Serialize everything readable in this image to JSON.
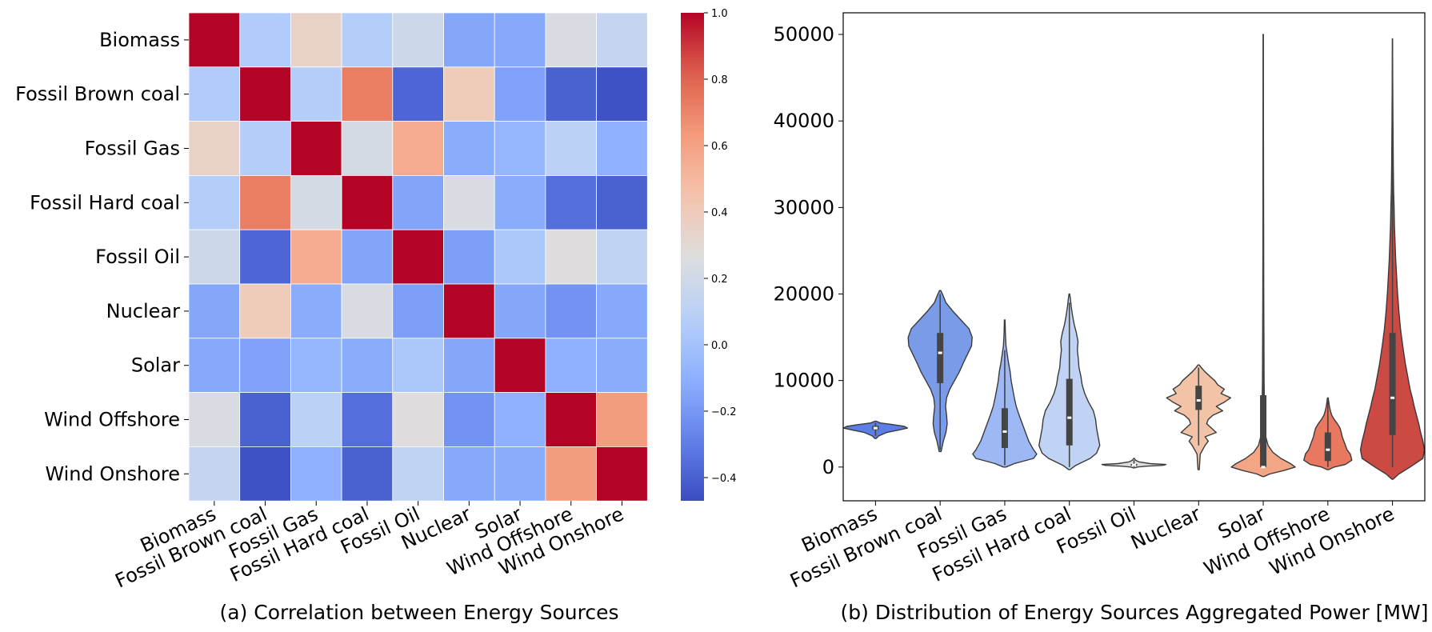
{
  "chart_data": [
    {
      "type": "heatmap",
      "caption": "(a) Correlation between Energy Sources",
      "row_labels": [
        "Biomass",
        "Fossil Brown coal",
        "Fossil Gas",
        "Fossil Hard coal",
        "Fossil Oil",
        "Nuclear",
        "Solar",
        "Wind Offshore",
        "Wind Onshore"
      ],
      "col_labels": [
        "Biomass",
        "Fossil Brown coal",
        "Fossil Gas",
        "Fossil Hard coal",
        "Fossil Oil",
        "Nuclear",
        "Solar",
        "Wind Offshore",
        "Wind Onshore"
      ],
      "colormap": "coolwarm",
      "vmin": -0.47,
      "vmax": 1.0,
      "colorbar_ticks": [
        "1.0",
        "0.8",
        "0.6",
        "0.4",
        "0.2",
        "0.0",
        "−0.2",
        "−0.4"
      ],
      "colorbar_tick_values": [
        1.0,
        0.8,
        0.6,
        0.4,
        0.2,
        0.0,
        -0.2,
        -0.4
      ],
      "values": [
        [
          1.0,
          0.05,
          0.35,
          0.07,
          0.18,
          -0.14,
          -0.13,
          0.24,
          0.15
        ],
        [
          0.05,
          1.0,
          0.07,
          0.72,
          -0.38,
          0.4,
          -0.16,
          -0.4,
          -0.45
        ],
        [
          0.35,
          0.07,
          1.0,
          0.22,
          0.56,
          -0.12,
          -0.07,
          0.1,
          -0.1
        ],
        [
          0.07,
          0.72,
          0.22,
          1.0,
          -0.15,
          0.24,
          -0.12,
          -0.35,
          -0.4
        ],
        [
          0.18,
          -0.38,
          0.56,
          -0.15,
          1.0,
          -0.17,
          0.03,
          0.27,
          0.12
        ],
        [
          -0.14,
          0.4,
          -0.12,
          0.24,
          -0.17,
          1.0,
          -0.14,
          -0.22,
          -0.13
        ],
        [
          -0.13,
          -0.16,
          -0.07,
          -0.12,
          0.03,
          -0.14,
          1.0,
          -0.1,
          -0.12
        ],
        [
          0.24,
          -0.4,
          0.1,
          -0.35,
          0.27,
          -0.22,
          -0.1,
          1.0,
          0.62
        ],
        [
          0.15,
          -0.45,
          -0.1,
          -0.4,
          0.12,
          -0.13,
          -0.12,
          0.62,
          1.0
        ]
      ]
    },
    {
      "type": "violin",
      "caption": "(b) Distribution of Energy Sources Aggregated Power [MW]",
      "categories": [
        "Biomass",
        "Fossil Brown coal",
        "Fossil Gas",
        "Fossil Hard coal",
        "Fossil Oil",
        "Nuclear",
        "Solar",
        "Wind Offshore",
        "Wind Onshore"
      ],
      "colors": [
        "#5b7fe6",
        "#7a9ce8",
        "#9db8f5",
        "#c0d3f4",
        "#dcdcdc",
        "#f3c3a8",
        "#f2a686",
        "#e8785f",
        "#cb4a44"
      ],
      "ylim": [
        -3900,
        52500
      ],
      "yticks": [
        0,
        10000,
        20000,
        30000,
        40000,
        50000
      ],
      "ytick_labels": [
        "0",
        "10000",
        "20000",
        "30000",
        "40000",
        "50000"
      ],
      "series": [
        {
          "name": "Biomass",
          "median": 4500,
          "q1": 4300,
          "q3": 4750,
          "whisker_low": 3600,
          "whisker_high": 5100,
          "profile": [
            [
              3300,
              0.02
            ],
            [
              3600,
              0.1
            ],
            [
              4000,
              0.35
            ],
            [
              4300,
              0.75
            ],
            [
              4500,
              1.0
            ],
            [
              4700,
              0.9
            ],
            [
              4900,
              0.55
            ],
            [
              5100,
              0.15
            ],
            [
              5300,
              0.02
            ]
          ]
        },
        {
          "name": "Fossil Brown coal",
          "median": 13200,
          "q1": 9700,
          "q3": 15500,
          "whisker_low": 2000,
          "whisker_high": 20000,
          "profile": [
            [
              1800,
              0.03
            ],
            [
              3000,
              0.1
            ],
            [
              4000,
              0.18
            ],
            [
              5000,
              0.22
            ],
            [
              6000,
              0.2
            ],
            [
              7000,
              0.17
            ],
            [
              8000,
              0.2
            ],
            [
              9000,
              0.3
            ],
            [
              10000,
              0.45
            ],
            [
              11000,
              0.6
            ],
            [
              12000,
              0.72
            ],
            [
              13000,
              0.85
            ],
            [
              14000,
              0.98
            ],
            [
              15000,
              1.0
            ],
            [
              16000,
              0.9
            ],
            [
              17000,
              0.65
            ],
            [
              18000,
              0.4
            ],
            [
              19000,
              0.18
            ],
            [
              20000,
              0.07
            ],
            [
              20400,
              0.02
            ]
          ]
        },
        {
          "name": "Fossil Gas",
          "median": 4100,
          "q1": 2200,
          "q3": 6800,
          "whisker_low": 200,
          "whisker_high": 13500,
          "profile": [
            [
              0,
              0.04
            ],
            [
              400,
              0.3
            ],
            [
              1000,
              0.9
            ],
            [
              1500,
              1.0
            ],
            [
              2000,
              0.9
            ],
            [
              3000,
              0.75
            ],
            [
              4000,
              0.65
            ],
            [
              5000,
              0.55
            ],
            [
              6000,
              0.45
            ],
            [
              7000,
              0.36
            ],
            [
              8000,
              0.3
            ],
            [
              9000,
              0.25
            ],
            [
              10000,
              0.2
            ],
            [
              11000,
              0.17
            ],
            [
              12000,
              0.12
            ],
            [
              13000,
              0.08
            ],
            [
              14000,
              0.04
            ],
            [
              15500,
              0.02
            ],
            [
              17000,
              0.01
            ]
          ]
        },
        {
          "name": "Fossil Hard coal",
          "median": 5700,
          "q1": 2500,
          "q3": 10200,
          "whisker_low": 0,
          "whisker_high": 19000,
          "profile": [
            [
              -300,
              0.02
            ],
            [
              200,
              0.2
            ],
            [
              1000,
              0.65
            ],
            [
              1600,
              0.85
            ],
            [
              2500,
              0.95
            ],
            [
              3500,
              0.9
            ],
            [
              4500,
              0.85
            ],
            [
              5500,
              0.82
            ],
            [
              6500,
              0.75
            ],
            [
              7500,
              0.6
            ],
            [
              8500,
              0.48
            ],
            [
              9500,
              0.4
            ],
            [
              10500,
              0.36
            ],
            [
              11500,
              0.3
            ],
            [
              12500,
              0.28
            ],
            [
              13500,
              0.25
            ],
            [
              14500,
              0.27
            ],
            [
              15500,
              0.22
            ],
            [
              16500,
              0.15
            ],
            [
              17500,
              0.1
            ],
            [
              18500,
              0.06
            ],
            [
              19500,
              0.03
            ],
            [
              20000,
              0.01
            ]
          ]
        },
        {
          "name": "Fossil Oil",
          "median": 250,
          "q1": 150,
          "q3": 350,
          "whisker_low": 0,
          "whisker_high": 800,
          "profile": [
            [
              -100,
              0.02
            ],
            [
              0,
              0.1
            ],
            [
              100,
              0.4
            ],
            [
              200,
              0.9
            ],
            [
              300,
              1.0
            ],
            [
              400,
              0.5
            ],
            [
              600,
              0.15
            ],
            [
              800,
              0.05
            ],
            [
              1000,
              0.01
            ]
          ]
        },
        {
          "name": "Nuclear",
          "median": 7700,
          "q1": 6600,
          "q3": 9400,
          "whisker_low": 2500,
          "whisker_high": 11500,
          "profile": [
            [
              -300,
              0.02
            ],
            [
              1500,
              0.05
            ],
            [
              2500,
              0.2
            ],
            [
              3000,
              0.3
            ],
            [
              3500,
              0.2
            ],
            [
              4000,
              0.55
            ],
            [
              4500,
              0.4
            ],
            [
              5000,
              0.25
            ],
            [
              5500,
              0.3
            ],
            [
              6000,
              0.45
            ],
            [
              6500,
              0.75
            ],
            [
              7000,
              0.55
            ],
            [
              7500,
              0.8
            ],
            [
              8000,
              1.0
            ],
            [
              8500,
              0.7
            ],
            [
              9000,
              0.8
            ],
            [
              9500,
              0.6
            ],
            [
              10000,
              0.5
            ],
            [
              10500,
              0.35
            ],
            [
              11000,
              0.2
            ],
            [
              11500,
              0.08
            ],
            [
              11800,
              0.02
            ]
          ]
        },
        {
          "name": "Solar",
          "median": 0,
          "q1": 0,
          "q3": 8300,
          "whisker_low": 0,
          "whisker_high": 50000,
          "profile": [
            [
              -1100,
              0.02
            ],
            [
              -800,
              0.2
            ],
            [
              -400,
              0.65
            ],
            [
              0,
              1.0
            ],
            [
              400,
              0.85
            ],
            [
              1000,
              0.55
            ],
            [
              1700,
              0.3
            ],
            [
              2500,
              0.15
            ],
            [
              3500,
              0.08
            ],
            [
              6000,
              0.04
            ],
            [
              10000,
              0.025
            ],
            [
              20000,
              0.015
            ],
            [
              30000,
              0.01
            ],
            [
              40000,
              0.006
            ],
            [
              50000,
              0.003
            ]
          ]
        },
        {
          "name": "Wind Offshore",
          "median": 2000,
          "q1": 700,
          "q3": 4000,
          "whisker_low": 0,
          "whisker_high": 7800,
          "profile": [
            [
              -300,
              0.02
            ],
            [
              0,
              0.2
            ],
            [
              300,
              0.55
            ],
            [
              800,
              0.75
            ],
            [
              1500,
              0.7
            ],
            [
              2000,
              0.6
            ],
            [
              2500,
              0.55
            ],
            [
              3000,
              0.5
            ],
            [
              3500,
              0.45
            ],
            [
              4000,
              0.42
            ],
            [
              4500,
              0.38
            ],
            [
              5000,
              0.3
            ],
            [
              5500,
              0.2
            ],
            [
              6000,
              0.12
            ],
            [
              6500,
              0.08
            ],
            [
              7000,
              0.05
            ],
            [
              7500,
              0.03
            ],
            [
              8000,
              0.01
            ]
          ]
        },
        {
          "name": "Wind Onshore",
          "median": 8000,
          "q1": 3700,
          "q3": 15500,
          "whisker_low": 0,
          "whisker_high": 49500,
          "profile": [
            [
              -1400,
              0.02
            ],
            [
              -800,
              0.2
            ],
            [
              0,
              0.55
            ],
            [
              1000,
              0.95
            ],
            [
              2000,
              1.0
            ],
            [
              3000,
              0.95
            ],
            [
              4000,
              0.88
            ],
            [
              5000,
              0.82
            ],
            [
              6000,
              0.75
            ],
            [
              7000,
              0.68
            ],
            [
              8000,
              0.62
            ],
            [
              9000,
              0.55
            ],
            [
              10000,
              0.5
            ],
            [
              12000,
              0.4
            ],
            [
              14000,
              0.32
            ],
            [
              16000,
              0.25
            ],
            [
              18000,
              0.2
            ],
            [
              20000,
              0.16
            ],
            [
              22000,
              0.13
            ],
            [
              24000,
              0.1
            ],
            [
              26000,
              0.08
            ],
            [
              28000,
              0.06
            ],
            [
              30000,
              0.05
            ],
            [
              32000,
              0.035
            ],
            [
              35000,
              0.025
            ],
            [
              40000,
              0.015
            ],
            [
              45000,
              0.008
            ],
            [
              49500,
              0.003
            ]
          ]
        }
      ]
    }
  ]
}
